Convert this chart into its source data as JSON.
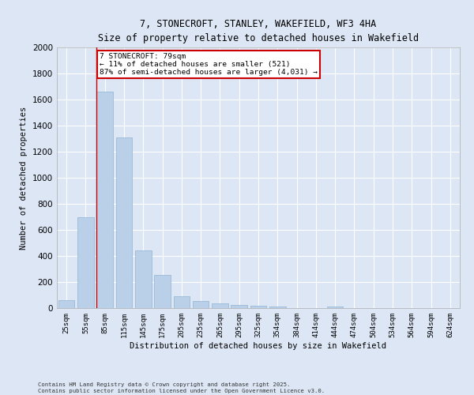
{
  "title_line1": "7, STONECROFT, STANLEY, WAKEFIELD, WF3 4HA",
  "title_line2": "Size of property relative to detached houses in Wakefield",
  "xlabel": "Distribution of detached houses by size in Wakefield",
  "ylabel": "Number of detached properties",
  "bar_color": "#bad0e8",
  "bar_edge_color": "#90b4d4",
  "background_color": "#dce6f5",
  "grid_color": "#ffffff",
  "categories": [
    "25sqm",
    "55sqm",
    "85sqm",
    "115sqm",
    "145sqm",
    "175sqm",
    "205sqm",
    "235sqm",
    "265sqm",
    "295sqm",
    "325sqm",
    "354sqm",
    "384sqm",
    "414sqm",
    "444sqm",
    "474sqm",
    "504sqm",
    "534sqm",
    "564sqm",
    "594sqm",
    "624sqm"
  ],
  "values": [
    60,
    700,
    1660,
    1310,
    440,
    255,
    90,
    55,
    35,
    25,
    20,
    10,
    0,
    0,
    12,
    0,
    0,
    0,
    0,
    0,
    0
  ],
  "ylim": [
    0,
    2000
  ],
  "yticks": [
    0,
    200,
    400,
    600,
    800,
    1000,
    1200,
    1400,
    1600,
    1800,
    2000
  ],
  "red_line_x": 2,
  "annotation_text_line1": "7 STONECROFT: 79sqm",
  "annotation_text_line2": "← 11% of detached houses are smaller (521)",
  "annotation_text_line3": "87% of semi-detached houses are larger (4,031) →",
  "annotation_box_color": "#ffffff",
  "annotation_box_edge_color": "#cc0000",
  "footer_line1": "Contains HM Land Registry data © Crown copyright and database right 2025.",
  "footer_line2": "Contains public sector information licensed under the Open Government Licence v3.0."
}
